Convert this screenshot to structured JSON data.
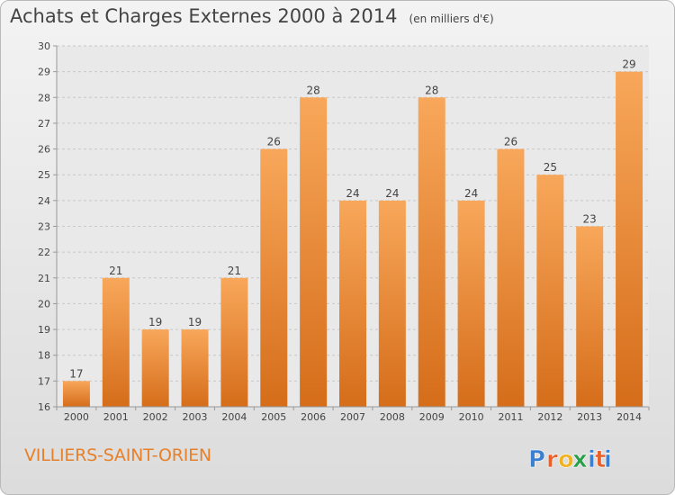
{
  "header": {
    "title": "Achats et Charges Externes 2000 à 2014",
    "subtitle": "(en milliers d'€)"
  },
  "place_name": "VILLIERS-SAINT-ORIEN",
  "logo": {
    "text": "Proxiti",
    "letters": [
      "P",
      "r",
      "o",
      "x",
      "i",
      "t",
      "i"
    ],
    "colors": [
      "#3a7fd0",
      "#e8612c",
      "#f0b21f",
      "#2a9e48",
      "#3a7fd0",
      "#e8612c",
      "#3a7fd0"
    ]
  },
  "colors": {
    "bar_top": "#f8a75a",
    "bar_bottom": "#d56d1a",
    "text": "#444444",
    "place_name": "#e7802a"
  },
  "chart_data": {
    "type": "bar",
    "title": "Achats et Charges Externes 2000 à 2014",
    "subtitle": "(en milliers d'€)",
    "categories": [
      "2000",
      "2001",
      "2002",
      "2003",
      "2004",
      "2005",
      "2006",
      "2007",
      "2008",
      "2009",
      "2010",
      "2011",
      "2012",
      "2013",
      "2014"
    ],
    "values": [
      17,
      21,
      19,
      19,
      21,
      26,
      28,
      24,
      24,
      28,
      24,
      26,
      25,
      23,
      29
    ],
    "data_labels": [
      "17",
      "21",
      "19",
      "19",
      "21",
      "26",
      "28",
      "24",
      "24",
      "28",
      "24",
      "26",
      "25",
      "23",
      "29"
    ],
    "y_ticks": [
      "16",
      "17",
      "18",
      "19",
      "20",
      "21",
      "22",
      "23",
      "24",
      "25",
      "26",
      "27",
      "28",
      "29",
      "30"
    ],
    "ylim": [
      16,
      30
    ],
    "xlabel": "",
    "ylabel": "",
    "grid": true
  }
}
